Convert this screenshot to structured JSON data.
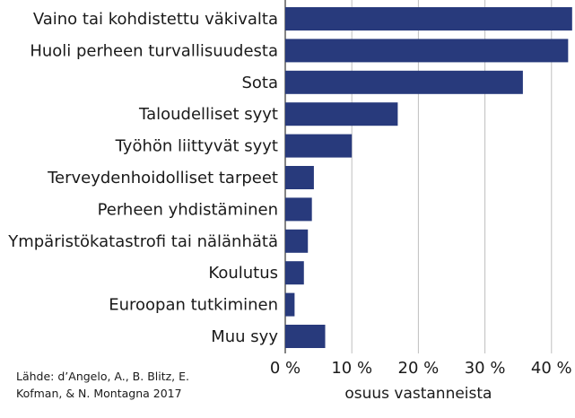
{
  "chart_data": {
    "type": "bar",
    "orientation": "horizontal",
    "categories": [
      "Vaino tai kohdistettu väkivalta",
      "Huoli perheen turvallisuudesta",
      "Sota",
      "Taloudelliset syyt",
      "Työhön liittyvät syyt",
      "Terveydenhoidolliset tarpeet",
      "Perheen yhdistäminen",
      "Ympäristökatastrofi tai nälänhätä",
      "Koulutus",
      "Euroopan tutkiminen",
      "Muu syy"
    ],
    "values": [
      43.1,
      42.5,
      35.7,
      16.9,
      10.0,
      4.3,
      4.0,
      3.4,
      2.8,
      1.4,
      6.0
    ],
    "xlabel": "osuus vastanneista",
    "ylabel": "",
    "xlim": [
      0,
      43
    ],
    "xticks": [
      0,
      10,
      20,
      30,
      40
    ],
    "xtick_labels": [
      "0 %",
      "10 %",
      "20 %",
      "30 %",
      "40 %"
    ],
    "grid": "vertical",
    "bar_color": "#283a7c",
    "grid_color": "#bfbfbf"
  },
  "source_lines": [
    "Lähde: d’Angelo, A., B. Blitz, E.",
    "Kofman, & N. Montagna 2017"
  ]
}
